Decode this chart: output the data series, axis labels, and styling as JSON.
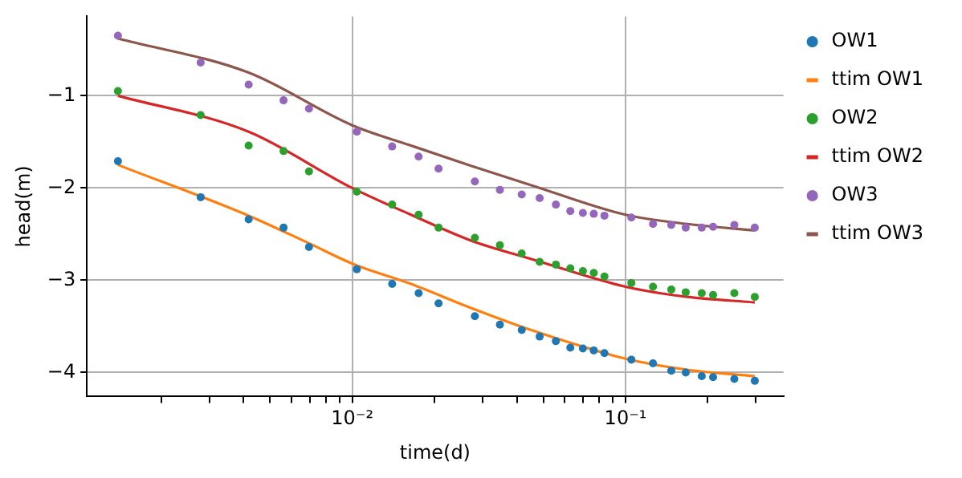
{
  "chart_data": {
    "type": "scatter",
    "xlabel": "time(d)",
    "ylabel": "head(m)",
    "log": "x",
    "grid": true,
    "legend": "top right",
    "xlim": [
      0.00107,
      0.378
    ],
    "ylim": [
      -4.26,
      -0.14
    ],
    "xticks": [
      {
        "value": 0.002,
        "label": null
      },
      {
        "value": 0.003,
        "label": null
      },
      {
        "value": 0.004,
        "label": null
      },
      {
        "value": 0.005,
        "label": null
      },
      {
        "value": 0.006,
        "label": null
      },
      {
        "value": 0.007,
        "label": null
      },
      {
        "value": 0.008,
        "label": null
      },
      {
        "value": 0.009,
        "label": null
      },
      {
        "value": 0.01,
        "label": "10⁻²"
      },
      {
        "value": 0.02,
        "label": null
      },
      {
        "value": 0.03,
        "label": null
      },
      {
        "value": 0.04,
        "label": null
      },
      {
        "value": 0.05,
        "label": null
      },
      {
        "value": 0.06,
        "label": null
      },
      {
        "value": 0.07,
        "label": null
      },
      {
        "value": 0.08,
        "label": null
      },
      {
        "value": 0.09,
        "label": null
      },
      {
        "value": 0.1,
        "label": "10⁻¹"
      },
      {
        "value": 0.2,
        "label": null
      },
      {
        "value": 0.3,
        "label": null
      }
    ],
    "yticks": [
      -4,
      -3,
      -2,
      -1
    ],
    "series": [
      {
        "name": "OW1",
        "marker": "circle",
        "color": "#1f77b4",
        "x": [
          0.00139,
          0.00279,
          0.00418,
          0.00561,
          0.00695,
          0.0104,
          0.014,
          0.0175,
          0.0207,
          0.0281,
          0.0347,
          0.0417,
          0.0485,
          0.0556,
          0.0628,
          0.0698,
          0.0765,
          0.0837,
          0.105,
          0.126,
          0.147,
          0.166,
          0.19,
          0.209,
          0.25,
          0.297
        ],
        "values": [
          -1.71,
          -2.1,
          -2.34,
          -2.43,
          -2.64,
          -2.88,
          -3.04,
          -3.14,
          -3.25,
          -3.39,
          -3.48,
          -3.54,
          -3.61,
          -3.66,
          -3.73,
          -3.74,
          -3.76,
          -3.79,
          -3.86,
          -3.9,
          -3.98,
          -4.0,
          -4.04,
          -4.05,
          -4.07,
          -4.09
        ]
      },
      {
        "name": "ttim OW1",
        "type": "line",
        "color": "#ff7f0e",
        "x": [
          0.00139,
          0.00418,
          0.00695,
          0.01,
          0.0164,
          0.0272,
          0.0452,
          0.1,
          0.168,
          0.297
        ],
        "values": [
          -1.75,
          -2.3,
          -2.6,
          -2.82,
          -3.04,
          -3.3,
          -3.54,
          -3.85,
          -3.97,
          -4.04
        ]
      },
      {
        "name": "OW2",
        "marker": "circle",
        "color": "#2ca02c",
        "x": [
          0.00139,
          0.00279,
          0.00418,
          0.00561,
          0.00695,
          0.0104,
          0.014,
          0.0175,
          0.0207,
          0.0281,
          0.0347,
          0.0417,
          0.0485,
          0.0556,
          0.0628,
          0.0698,
          0.0765,
          0.0837,
          0.105,
          0.126,
          0.147,
          0.166,
          0.19,
          0.209,
          0.25,
          0.297
        ],
        "values": [
          -0.95,
          -1.21,
          -1.54,
          -1.6,
          -1.82,
          -2.04,
          -2.18,
          -2.29,
          -2.43,
          -2.54,
          -2.62,
          -2.71,
          -2.8,
          -2.83,
          -2.87,
          -2.9,
          -2.92,
          -2.96,
          -3.03,
          -3.07,
          -3.1,
          -3.13,
          -3.14,
          -3.16,
          -3.14,
          -3.18
        ]
      },
      {
        "name": "ttim OW2",
        "type": "line",
        "color": "#d62728",
        "x": [
          0.00139,
          0.00418,
          0.01,
          0.0164,
          0.0272,
          0.0452,
          0.1,
          0.168,
          0.297
        ],
        "values": [
          -1.0,
          -1.39,
          -2.0,
          -2.29,
          -2.57,
          -2.77,
          -3.07,
          -3.18,
          -3.24
        ]
      },
      {
        "name": "OW3",
        "marker": "circle",
        "color": "#9467bd",
        "x": [
          0.00139,
          0.00279,
          0.00418,
          0.00561,
          0.00695,
          0.0104,
          0.014,
          0.0175,
          0.0207,
          0.0281,
          0.0347,
          0.0417,
          0.0485,
          0.0556,
          0.0628,
          0.0698,
          0.0765,
          0.0837,
          0.105,
          0.126,
          0.147,
          0.166,
          0.19,
          0.209,
          0.25,
          0.297
        ],
        "values": [
          -0.35,
          -0.64,
          -0.88,
          -1.05,
          -1.14,
          -1.39,
          -1.55,
          -1.66,
          -1.79,
          -1.93,
          -2.02,
          -2.07,
          -2.11,
          -2.18,
          -2.25,
          -2.27,
          -2.28,
          -2.3,
          -2.32,
          -2.39,
          -2.4,
          -2.43,
          -2.43,
          -2.42,
          -2.4,
          -2.43
        ]
      },
      {
        "name": "ttim OW3",
        "type": "line",
        "color": "#8c564b",
        "x": [
          0.00139,
          0.00418,
          0.01,
          0.0164,
          0.0272,
          0.0452,
          0.1,
          0.168,
          0.297
        ],
        "values": [
          -0.38,
          -0.75,
          -1.32,
          -1.54,
          -1.76,
          -1.97,
          -2.29,
          -2.39,
          -2.46
        ]
      }
    ]
  }
}
